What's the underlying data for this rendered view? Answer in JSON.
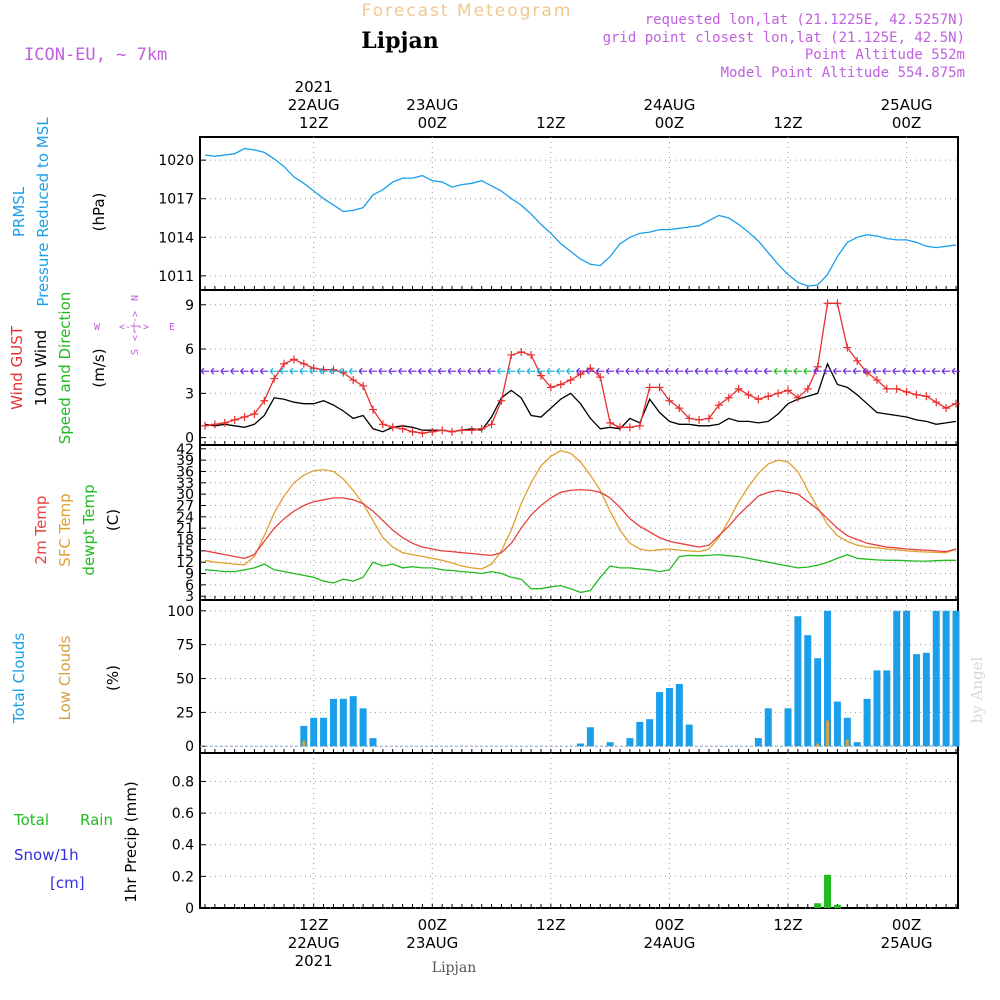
{
  "header": {
    "title": "Forecast Meteogram",
    "station": "Lipjan",
    "model": "ICON-EU, ~ 7km",
    "info": [
      "requested lon,lat (21.1225E, 42.5257N)",
      "grid point closest lon,lat (21.125E, 42.5N)",
      "Point Altitude 552m",
      "Model Point Altitude 554.875m"
    ],
    "footer_station": "Lipjan",
    "watermark": "by Angel"
  },
  "colors": {
    "pressure": "#1a9fe8",
    "gust": "#e83030",
    "wind": "#000000",
    "winddir_green": "#22bb22",
    "temp2m": "#e84040",
    "sfctemp": "#e0a030",
    "dewpt": "#22bb22",
    "total_clouds": "#1a9fe8",
    "low_clouds": "#d8a040",
    "rain": "#22bb22",
    "snow": "#3030dd",
    "header_title": "#f0c890",
    "info": "#c060e0"
  },
  "time_axis": {
    "top_labels": [
      {
        "hour": 16,
        "lines": [
          "2021",
          "22AUG",
          "12Z"
        ]
      },
      {
        "hour": 28,
        "lines": [
          "23AUG",
          "00Z"
        ]
      },
      {
        "hour": 40,
        "lines": [
          "12Z"
        ]
      },
      {
        "hour": 52,
        "lines": [
          "24AUG",
          "00Z"
        ]
      },
      {
        "hour": 64,
        "lines": [
          "12Z"
        ]
      },
      {
        "hour": 76,
        "lines": [
          "25AUG",
          "00Z"
        ]
      }
    ],
    "bottom_labels": [
      {
        "hour": 16,
        "lines": [
          "12Z",
          "22AUG",
          "2021"
        ]
      },
      {
        "hour": 28,
        "lines": [
          "00Z",
          "23AUG"
        ]
      },
      {
        "hour": 40,
        "lines": [
          "12Z"
        ]
      },
      {
        "hour": 52,
        "lines": [
          "00Z",
          "24AUG"
        ]
      },
      {
        "hour": 64,
        "lines": [
          "12Z"
        ]
      },
      {
        "hour": 76,
        "lines": [
          "00Z",
          "25AUG"
        ]
      }
    ],
    "hour_range": [
      5,
      81
    ]
  },
  "chart_data": [
    {
      "type": "line",
      "name": "pressure",
      "ylabels": [
        "PRMSL",
        "Pressure Reduced to MSL",
        "(hPa)"
      ],
      "yticks": [
        1011,
        1014,
        1017,
        1020
      ],
      "ylim": [
        1009.9,
        1021.8
      ],
      "series": [
        {
          "name": "PRMSL",
          "hours": [
            5,
            6,
            7,
            8,
            9,
            10,
            11,
            12,
            13,
            14,
            15,
            16,
            17,
            18,
            19,
            20,
            21,
            22,
            23,
            24,
            25,
            26,
            27,
            28,
            29,
            30,
            31,
            32,
            33,
            34,
            35,
            36,
            37,
            38,
            39,
            40,
            41,
            42,
            43,
            44,
            45,
            46,
            47,
            48,
            49,
            50,
            51,
            52,
            53,
            54,
            55,
            56,
            57,
            58,
            59,
            60,
            61,
            62,
            63,
            64,
            65,
            66,
            67,
            68,
            69,
            70,
            71,
            72,
            73,
            74,
            75,
            76,
            77,
            78,
            79,
            80,
            81
          ],
          "values": [
            1020.4,
            1020.3,
            1020.4,
            1020.5,
            1020.9,
            1020.8,
            1020.6,
            1020.1,
            1019.5,
            1018.7,
            1018.2,
            1017.6,
            1017.0,
            1016.5,
            1016.0,
            1016.1,
            1016.3,
            1017.3,
            1017.7,
            1018.3,
            1018.6,
            1018.6,
            1018.8,
            1018.4,
            1018.3,
            1017.9,
            1018.1,
            1018.2,
            1018.4,
            1018.0,
            1017.6,
            1017.0,
            1016.5,
            1015.8,
            1015.0,
            1014.3,
            1013.5,
            1012.9,
            1012.3,
            1011.9,
            1011.8,
            1012.5,
            1013.5,
            1014.0,
            1014.3,
            1014.4,
            1014.6,
            1014.6,
            1014.7,
            1014.8,
            1014.9,
            1015.3,
            1015.7,
            1015.5,
            1015.0,
            1014.4,
            1013.7,
            1012.8,
            1011.9,
            1011.1,
            1010.5,
            1010.2,
            1010.3,
            1011.1,
            1012.5,
            1013.6,
            1014.0,
            1014.2,
            1014.1,
            1013.9,
            1013.8,
            1013.8,
            1013.6,
            1013.3,
            1013.2,
            1013.3,
            1013.4
          ]
        }
      ]
    },
    {
      "type": "line",
      "name": "wind",
      "ylabels": [
        "Wind GUST",
        "10m Wind",
        "Speed and Direction",
        "(m/s)"
      ],
      "compass": {
        "n": "N",
        "s": "S",
        "w": "W",
        "e": "E",
        "mid": "<-|->"
      },
      "yticks": [
        0,
        3,
        6,
        9
      ],
      "ylim": [
        -0.5,
        10.0
      ],
      "hours": [
        5,
        6,
        7,
        8,
        9,
        10,
        11,
        12,
        13,
        14,
        15,
        16,
        17,
        18,
        19,
        20,
        21,
        22,
        23,
        24,
        25,
        26,
        27,
        28,
        29,
        30,
        31,
        32,
        33,
        34,
        35,
        36,
        37,
        38,
        39,
        40,
        41,
        42,
        43,
        44,
        45,
        46,
        47,
        48,
        49,
        50,
        51,
        52,
        53,
        54,
        55,
        56,
        57,
        58,
        59,
        60,
        61,
        62,
        63,
        64,
        65,
        66,
        67,
        68,
        69,
        70,
        71,
        72,
        73,
        74,
        75,
        76,
        77,
        78,
        79,
        80,
        81
      ],
      "series": [
        {
          "name": "Wind GUST",
          "values": [
            0.8,
            0.9,
            1.0,
            1.2,
            1.4,
            1.6,
            2.5,
            4.0,
            5.0,
            5.3,
            5.0,
            4.7,
            4.6,
            4.6,
            4.4,
            3.9,
            3.5,
            1.9,
            0.9,
            0.7,
            0.6,
            0.4,
            0.3,
            0.4,
            0.5,
            0.4,
            0.5,
            0.5,
            0.6,
            0.9,
            2.5,
            5.6,
            5.8,
            5.6,
            4.2,
            3.4,
            3.6,
            3.9,
            4.3,
            4.7,
            4.1,
            1.0,
            0.7,
            0.7,
            0.8,
            3.4,
            3.4,
            2.5,
            2.0,
            1.3,
            1.2,
            1.3,
            2.2,
            2.7,
            3.3,
            2.9,
            2.6,
            2.8,
            3.0,
            3.2,
            2.7,
            3.3,
            4.8,
            9.1,
            9.1,
            6.1,
            5.2,
            4.4,
            3.9,
            3.3,
            3.3,
            3.1,
            2.9,
            2.8,
            2.4,
            2.0,
            2.3
          ]
        },
        {
          "name": "10m Wind",
          "values": [
            0.9,
            0.8,
            0.9,
            0.8,
            0.7,
            0.9,
            1.5,
            2.7,
            2.6,
            2.4,
            2.3,
            2.3,
            2.5,
            2.2,
            1.8,
            1.3,
            1.5,
            0.6,
            0.4,
            0.7,
            0.8,
            0.7,
            0.5,
            0.5,
            0.5,
            0.4,
            0.5,
            0.6,
            0.5,
            1.4,
            2.7,
            3.2,
            2.7,
            1.5,
            1.4,
            2.0,
            2.6,
            3.0,
            2.3,
            1.3,
            0.6,
            0.7,
            0.6,
            1.3,
            1.0,
            2.6,
            1.7,
            1.1,
            0.9,
            0.9,
            0.8,
            0.8,
            0.9,
            1.3,
            1.1,
            1.1,
            1.0,
            1.1,
            1.6,
            2.3,
            2.6,
            2.8,
            3.0,
            5.0,
            3.6,
            3.4,
            2.9,
            2.3,
            1.7,
            1.6,
            1.5,
            1.4,
            1.2,
            1.1,
            0.9,
            1.0,
            1.1
          ]
        }
      ]
    },
    {
      "type": "line",
      "name": "temperature",
      "ylabels": [
        "2m Temp",
        "SFC Temp",
        "dewpt Temp",
        "(C)"
      ],
      "yticks": [
        3,
        6,
        9,
        12,
        15,
        18,
        21,
        24,
        27,
        30,
        33,
        36,
        39,
        42
      ],
      "ylim": [
        2.0,
        43.0
      ],
      "hours": [
        5,
        6,
        7,
        8,
        9,
        10,
        11,
        12,
        13,
        14,
        15,
        16,
        17,
        18,
        19,
        20,
        21,
        22,
        23,
        24,
        25,
        26,
        27,
        28,
        29,
        30,
        31,
        32,
        33,
        34,
        35,
        36,
        37,
        38,
        39,
        40,
        41,
        42,
        43,
        44,
        45,
        46,
        47,
        48,
        49,
        50,
        51,
        52,
        53,
        54,
        55,
        56,
        57,
        58,
        59,
        60,
        61,
        62,
        63,
        64,
        65,
        66,
        67,
        68,
        69,
        70,
        71,
        72,
        73,
        74,
        75,
        76,
        77,
        78,
        79,
        80,
        81
      ],
      "series": [
        {
          "name": "2m Temp",
          "values": [
            15.0,
            14.5,
            14.0,
            13.5,
            13.0,
            14.0,
            17.5,
            21.0,
            23.5,
            25.5,
            27.0,
            28.0,
            28.5,
            29.0,
            29.0,
            28.5,
            27.5,
            25.5,
            23.0,
            20.5,
            18.5,
            17.0,
            16.0,
            15.5,
            15.0,
            14.8,
            14.5,
            14.3,
            14.0,
            13.8,
            14.5,
            17.0,
            21.0,
            24.5,
            27.0,
            29.0,
            30.5,
            31.0,
            31.2,
            31.0,
            30.5,
            29.0,
            26.5,
            23.5,
            21.5,
            20.0,
            18.5,
            17.5,
            17.0,
            16.5,
            16.0,
            16.5,
            19.0,
            21.5,
            24.5,
            27.0,
            29.5,
            30.5,
            31.0,
            30.5,
            30.0,
            28.0,
            26.0,
            23.5,
            21.0,
            19.0,
            18.0,
            17.0,
            16.5,
            16.0,
            15.8,
            15.5,
            15.3,
            15.2,
            15.0,
            14.8,
            15.5
          ]
        },
        {
          "name": "SFC Temp",
          "values": [
            12.5,
            12.0,
            11.8,
            11.5,
            11.3,
            13.5,
            19.0,
            25.0,
            29.5,
            33.0,
            35.0,
            36.2,
            36.5,
            36.0,
            34.0,
            31.0,
            27.5,
            23.0,
            18.5,
            16.0,
            14.5,
            14.0,
            13.5,
            13.0,
            12.5,
            11.8,
            11.0,
            10.5,
            10.2,
            11.5,
            15.0,
            20.5,
            27.5,
            33.0,
            37.5,
            40.0,
            41.5,
            40.8,
            38.5,
            35.0,
            31.0,
            25.5,
            20.5,
            17.0,
            15.5,
            15.0,
            15.3,
            15.5,
            15.2,
            15.0,
            14.8,
            15.5,
            18.5,
            23.0,
            28.0,
            32.0,
            35.5,
            38.0,
            39.0,
            38.5,
            36.0,
            31.0,
            26.5,
            22.0,
            19.0,
            17.5,
            16.5,
            16.0,
            15.8,
            15.5,
            15.3,
            15.0,
            14.8,
            14.7,
            14.6,
            14.5,
            15.5
          ]
        },
        {
          "name": "dewpt Temp",
          "values": [
            10.0,
            9.8,
            9.5,
            9.5,
            10.0,
            10.5,
            11.5,
            10.0,
            9.5,
            9.0,
            8.5,
            8.0,
            7.0,
            6.5,
            7.5,
            7.0,
            8.0,
            12.0,
            11.0,
            11.5,
            10.5,
            10.8,
            10.5,
            10.5,
            10.0,
            9.8,
            9.5,
            9.3,
            9.0,
            9.5,
            9.0,
            8.0,
            7.5,
            5.0,
            5.0,
            5.5,
            5.8,
            5.0,
            4.0,
            4.5,
            8.0,
            11.0,
            10.5,
            10.5,
            10.2,
            10.0,
            9.5,
            10.0,
            13.5,
            13.8,
            13.7,
            13.8,
            14.0,
            13.7,
            13.5,
            13.0,
            12.5,
            12.0,
            11.5,
            11.0,
            10.5,
            10.7,
            11.2,
            12.0,
            13.0,
            14.0,
            13.0,
            12.8,
            12.6,
            12.5,
            12.5,
            12.4,
            12.3,
            12.3,
            12.4,
            12.5,
            12.5
          ]
        }
      ]
    },
    {
      "type": "bar",
      "name": "clouds",
      "ylabels": [
        "Total Clouds",
        "Low Clouds",
        "(%)"
      ],
      "yticks": [
        0,
        25,
        50,
        75,
        100
      ],
      "ylim": [
        -5,
        108
      ],
      "total_bars": [
        [
          15,
          15
        ],
        [
          16,
          21
        ],
        [
          17,
          21
        ],
        [
          18,
          35
        ],
        [
          19,
          35
        ],
        [
          20,
          37
        ],
        [
          21,
          28
        ],
        [
          22,
          6
        ],
        [
          43,
          2
        ],
        [
          44,
          14
        ],
        [
          46,
          3
        ],
        [
          48,
          6
        ],
        [
          49,
          18
        ],
        [
          50,
          20
        ],
        [
          51,
          40
        ],
        [
          52,
          43
        ],
        [
          53,
          46
        ],
        [
          54,
          16
        ],
        [
          61,
          6
        ],
        [
          62,
          28
        ],
        [
          64,
          28
        ],
        [
          65,
          96
        ],
        [
          66,
          82
        ],
        [
          67,
          65
        ],
        [
          68,
          100
        ],
        [
          69,
          33
        ],
        [
          70,
          21
        ],
        [
          71,
          3
        ],
        [
          72,
          35
        ],
        [
          73,
          56
        ],
        [
          74,
          56
        ],
        [
          75,
          100
        ],
        [
          76,
          100
        ],
        [
          77,
          68
        ],
        [
          78,
          69
        ],
        [
          79,
          100
        ],
        [
          80,
          100
        ],
        [
          81,
          100
        ]
      ],
      "low_bars": [
        [
          15,
          4
        ],
        [
          68,
          19
        ],
        [
          70,
          5
        ],
        [
          67,
          2
        ]
      ]
    },
    {
      "type": "bar",
      "name": "precipitation",
      "ylabels": [
        "Total",
        "Rain",
        "Snow/1h",
        "[cm]",
        "1hr Precip (mm)"
      ],
      "yticks": [
        0,
        0.2,
        0.4,
        0.6,
        0.8
      ],
      "ylim": [
        0,
        0.98
      ],
      "rain_bars": [
        [
          67,
          0.03
        ],
        [
          68,
          0.21
        ],
        [
          69,
          0.02
        ]
      ]
    }
  ]
}
